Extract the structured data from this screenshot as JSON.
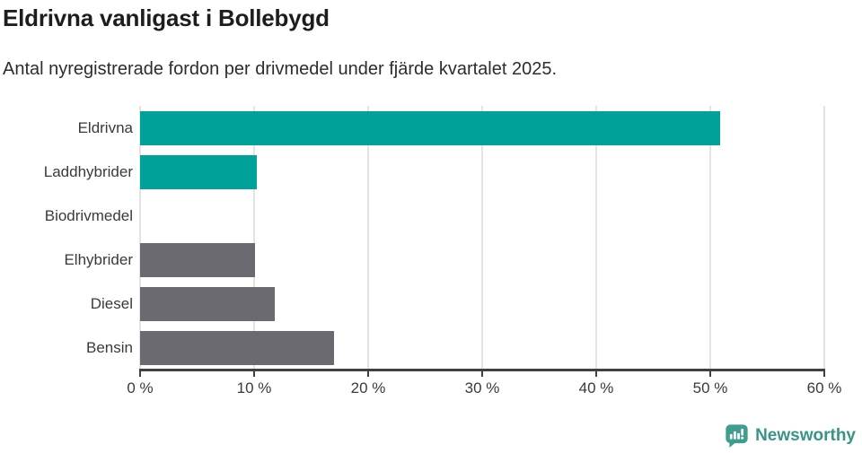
{
  "header": {
    "title": "Eldrivna vanligast i Bollebygd",
    "subtitle": "Antal nyregistrerade fordon per drivmedel under fjärde kvartalet 2025."
  },
  "chart_data": {
    "type": "bar",
    "orientation": "horizontal",
    "title": "Eldrivna vanligast i Bollebygd",
    "subtitle": "Antal nyregistrerade fordon per drivmedel under fjärde kvartalet 2025.",
    "categories": [
      "Eldrivna",
      "Laddhybrider",
      "Biodrivmedel",
      "Elhybrider",
      "Diesel",
      "Bensin"
    ],
    "values": [
      50.9,
      10.2,
      0,
      10.1,
      11.8,
      17.0
    ],
    "unit": "%",
    "xlabel": "",
    "ylabel": "",
    "xlim": [
      0,
      60
    ],
    "x_ticks": [
      0,
      10,
      20,
      30,
      40,
      50,
      60
    ],
    "x_tick_labels": [
      "0 %",
      "10 %",
      "20 %",
      "30 %",
      "40 %",
      "50 %",
      "60 %"
    ],
    "bar_colors": [
      "#00a19a",
      "#00a19a",
      "#6b6a71",
      "#6b6a71",
      "#6b6a71",
      "#6b6a71"
    ],
    "grid": true,
    "legend": "none"
  },
  "colors": {
    "teal": "#00a19a",
    "gray": "#6b6a71",
    "gridline": "#e4e4e4",
    "axis": "#414141",
    "title_text": "#1d1d1d",
    "label_text": "#3a3a3a",
    "brand_teal": "#399488",
    "brand_icon_teal": "#3f9d90"
  },
  "footer": {
    "brand_name": "Newsworthy",
    "brand_icon": "newsworthy-speech-bubble-chart-icon"
  }
}
